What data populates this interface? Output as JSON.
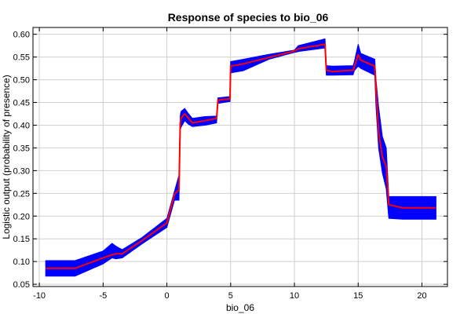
{
  "chart_data": {
    "type": "line",
    "title": "Response of species to bio_06",
    "xlabel": "bio_06",
    "ylabel": "Logistic output (probability of presence)",
    "xlim": [
      -10.5,
      22
    ],
    "ylim": [
      0.045,
      0.615
    ],
    "x_ticks": [
      -10,
      -5,
      0,
      5,
      10,
      15,
      20
    ],
    "y_ticks": [
      0.05,
      0.1,
      0.15,
      0.2,
      0.25,
      0.3,
      0.35,
      0.4,
      0.45,
      0.5,
      0.55,
      0.6
    ],
    "grid": true,
    "series": [
      {
        "role": "mean",
        "color": "#ff0000",
        "x": [
          -9.5,
          -7.2,
          -5.0,
          -4.3,
          -4.0,
          -3.5,
          -2.0,
          0.0,
          0.6,
          0.95,
          1.05,
          1.1,
          1.4,
          1.7,
          2.0,
          3.0,
          3.9,
          4.0,
          4.9,
          4.95,
          5.0,
          6.0,
          8.0,
          10.0,
          10.3,
          12.4,
          12.5,
          13.0,
          14.6,
          14.7,
          15.0,
          15.2,
          16.3,
          16.4,
          16.6,
          16.9,
          17.2,
          17.4,
          18.5,
          21.1
        ],
        "y": [
          0.085,
          0.085,
          0.108,
          0.115,
          0.117,
          0.117,
          0.145,
          0.185,
          0.248,
          0.258,
          0.405,
          0.415,
          0.425,
          0.415,
          0.405,
          0.41,
          0.415,
          0.455,
          0.458,
          0.458,
          0.53,
          0.535,
          0.549,
          0.563,
          0.568,
          0.578,
          0.521,
          0.518,
          0.521,
          0.529,
          0.555,
          0.543,
          0.53,
          0.48,
          0.385,
          0.33,
          0.31,
          0.225,
          0.218,
          0.218
        ]
      },
      {
        "role": "upper",
        "color": "#0000ff",
        "x": [
          -9.5,
          -7.2,
          -5.0,
          -4.3,
          -4.0,
          -3.5,
          -2.0,
          0.0,
          0.6,
          0.95,
          1.05,
          1.1,
          1.4,
          1.7,
          2.0,
          3.0,
          3.9,
          4.0,
          4.9,
          4.95,
          5.0,
          6.0,
          8.0,
          10.0,
          10.3,
          12.4,
          12.5,
          13.0,
          14.6,
          14.7,
          15.0,
          15.2,
          16.3,
          16.4,
          16.6,
          16.9,
          17.2,
          17.4,
          18.5,
          21.1
        ],
        "y": [
          0.102,
          0.102,
          0.123,
          0.14,
          0.134,
          0.126,
          0.152,
          0.195,
          0.255,
          0.29,
          0.42,
          0.43,
          0.437,
          0.425,
          0.415,
          0.419,
          0.42,
          0.46,
          0.463,
          0.463,
          0.54,
          0.545,
          0.556,
          0.565,
          0.575,
          0.59,
          0.531,
          0.53,
          0.531,
          0.54,
          0.578,
          0.558,
          0.545,
          0.5,
          0.44,
          0.375,
          0.35,
          0.243,
          0.243,
          0.243
        ]
      },
      {
        "role": "lower",
        "color": "#0000ff",
        "x": [
          -9.5,
          -7.2,
          -5.0,
          -4.3,
          -4.0,
          -3.5,
          -2.0,
          0.0,
          0.6,
          0.95,
          1.05,
          1.1,
          1.4,
          1.7,
          2.0,
          3.0,
          3.9,
          4.0,
          4.9,
          4.95,
          5.0,
          6.0,
          8.0,
          10.0,
          10.3,
          12.4,
          12.5,
          13.0,
          14.6,
          14.7,
          15.0,
          15.2,
          16.3,
          16.4,
          16.6,
          16.9,
          17.2,
          17.4,
          18.5,
          21.1
        ],
        "y": [
          0.068,
          0.068,
          0.095,
          0.108,
          0.106,
          0.108,
          0.138,
          0.175,
          0.235,
          0.235,
          0.39,
          0.395,
          0.41,
          0.402,
          0.397,
          0.4,
          0.405,
          0.448,
          0.452,
          0.452,
          0.515,
          0.52,
          0.545,
          0.56,
          0.562,
          0.57,
          0.51,
          0.51,
          0.511,
          0.52,
          0.53,
          0.525,
          0.51,
          0.44,
          0.35,
          0.295,
          0.26,
          0.195,
          0.193,
          0.193
        ]
      }
    ]
  }
}
